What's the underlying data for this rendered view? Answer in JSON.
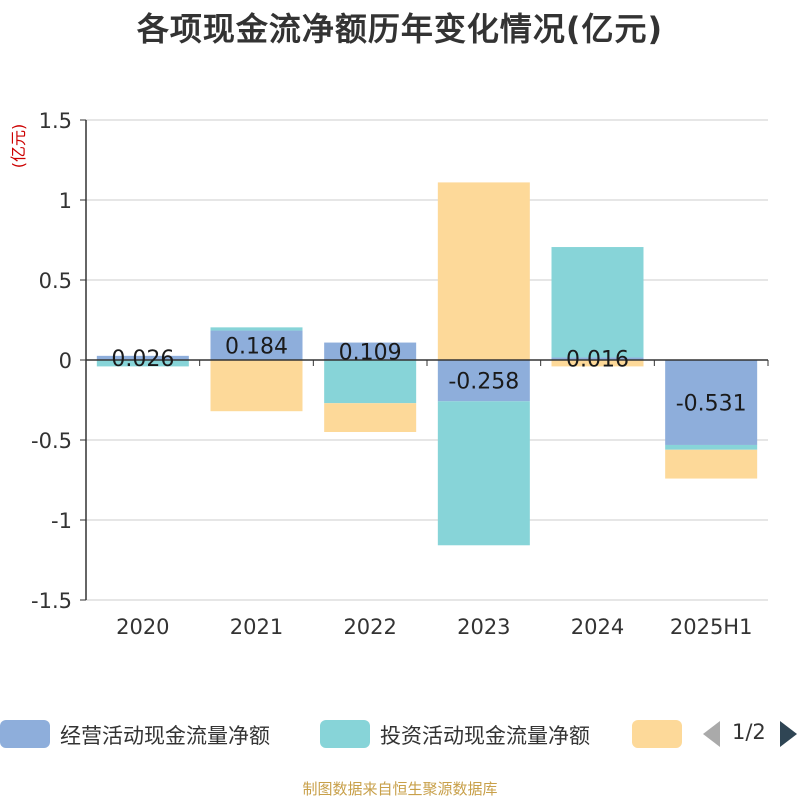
{
  "chart_data": {
    "type": "bar",
    "stacked": true,
    "title": "各项现金流净额历年变化情况(亿元)",
    "ylabel": "(亿元)",
    "xlabel": "",
    "categories": [
      "2020",
      "2021",
      "2022",
      "2023",
      "2024",
      "2025H1"
    ],
    "ylim": [
      -1.5,
      1.5
    ],
    "yticks": [
      1.5,
      1,
      0.5,
      0,
      -0.5,
      -1,
      -1.5
    ],
    "ytick_labels": [
      "1.5",
      "1",
      "0.5",
      "0",
      "-0.5",
      "-1",
      "-1.5"
    ],
    "grid": true,
    "series": [
      {
        "name": "经营活动现金流量净额",
        "color": "#8eaedb",
        "values": [
          0.026,
          0.184,
          0.109,
          -0.258,
          0.016,
          -0.531
        ],
        "labels": [
          "0.026",
          "0.184",
          "0.109",
          "-0.258",
          "0.016",
          "-0.531"
        ]
      },
      {
        "name": "投资活动现金流量净额",
        "color": "#87d4d8",
        "values": [
          -0.04,
          0.02,
          -0.27,
          -0.9,
          0.69,
          -0.03
        ],
        "labels": []
      },
      {
        "name": "",
        "color": "#fdd999",
        "values": [
          0.0,
          -0.32,
          -0.18,
          1.11,
          -0.04,
          -0.18
        ],
        "labels": []
      }
    ],
    "legend_position": "bottom",
    "legend_pager": "1/2"
  },
  "source_note": "制图数据来自恒生聚源数据库"
}
